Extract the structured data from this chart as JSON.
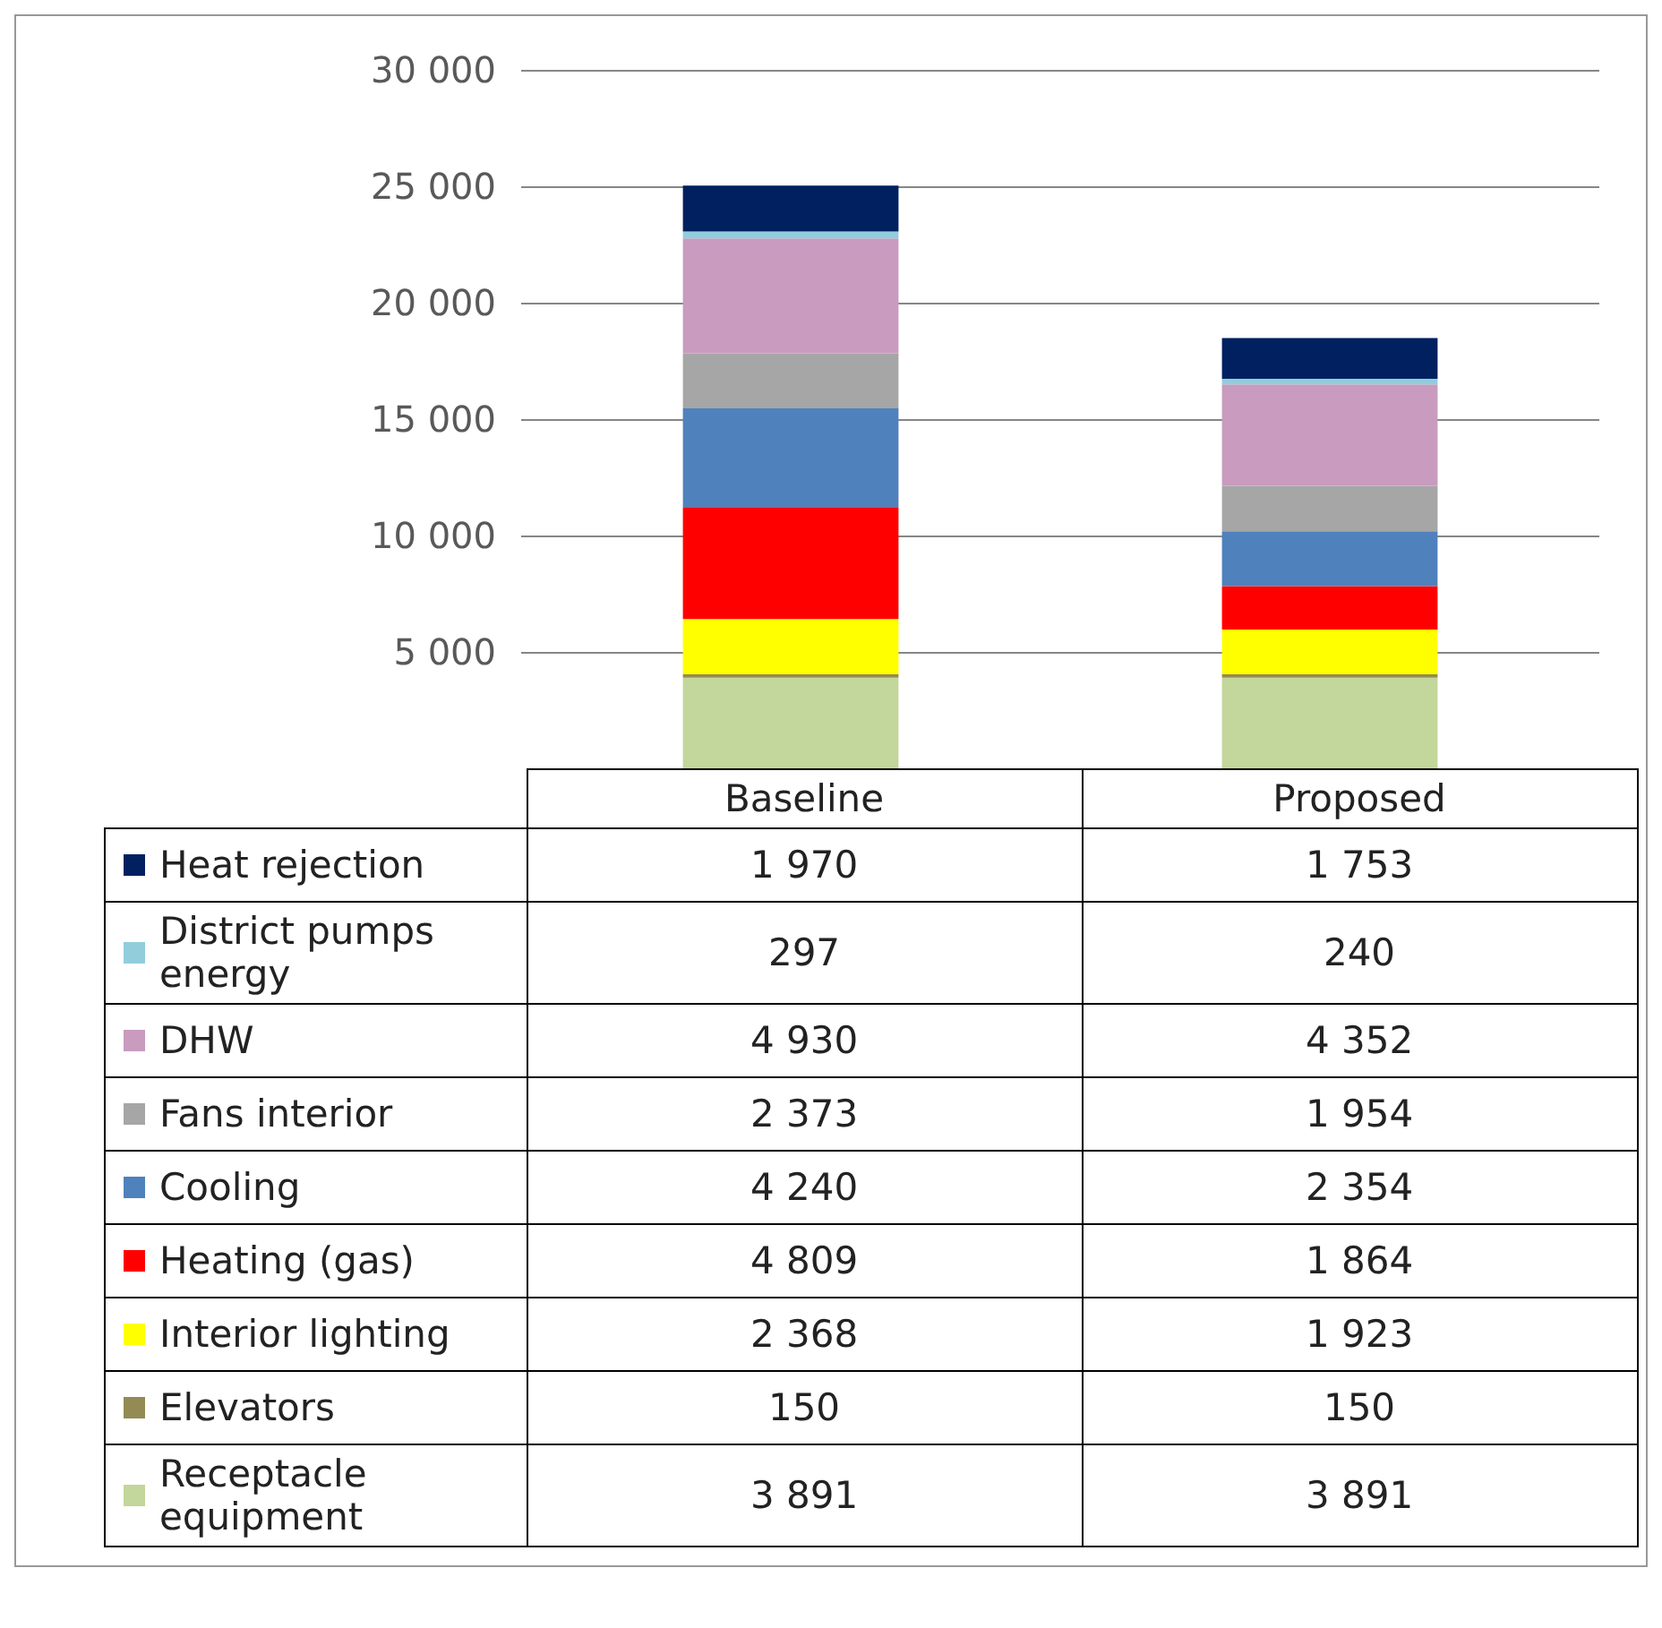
{
  "chart_data": {
    "type": "bar",
    "stacked": true,
    "categories": [
      "Baseline",
      "Proposed"
    ],
    "ylim": [
      0,
      30000
    ],
    "yticks": [
      {
        "value": 5000,
        "label": "5 000"
      },
      {
        "value": 10000,
        "label": "10 000"
      },
      {
        "value": 15000,
        "label": "15 000"
      },
      {
        "value": 20000,
        "label": "20 000"
      },
      {
        "value": 25000,
        "label": "25 000"
      },
      {
        "value": 30000,
        "label": "30 000"
      }
    ],
    "grid": "y",
    "legend": "bottom",
    "series": [
      {
        "name": "Receptacle equipment",
        "color": "#c3d69b",
        "values": [
          3891,
          3891
        ],
        "value_labels": [
          "3 891",
          "3 891"
        ]
      },
      {
        "name": "Elevators",
        "color": "#948a54",
        "values": [
          150,
          150
        ],
        "value_labels": [
          "150",
          "150"
        ]
      },
      {
        "name": "Interior lighting",
        "color": "#ffff00",
        "values": [
          2368,
          1923
        ],
        "value_labels": [
          "2 368",
          "1 923"
        ]
      },
      {
        "name": "Heating (gas)",
        "color": "#ff0000",
        "values": [
          4809,
          1864
        ],
        "value_labels": [
          "4 809",
          "1 864"
        ]
      },
      {
        "name": "Cooling",
        "color": "#4f81bd",
        "values": [
          4240,
          2354
        ],
        "value_labels": [
          "4 240",
          "2 354"
        ]
      },
      {
        "name": "Fans interior",
        "color": "#a6a6a6",
        "values": [
          2373,
          1954
        ],
        "value_labels": [
          "2 373",
          "1 954"
        ]
      },
      {
        "name": "DHW",
        "color": "#c89bbf",
        "values": [
          4930,
          4352
        ],
        "value_labels": [
          "4 930",
          "4 352"
        ]
      },
      {
        "name": "District pumps energy",
        "color": "#92cddc",
        "values": [
          297,
          240
        ],
        "value_labels": [
          "297",
          "240"
        ]
      },
      {
        "name": "Heat rejection",
        "color": "#002060",
        "values": [
          1970,
          1753
        ],
        "value_labels": [
          "1 970",
          "1 753"
        ]
      }
    ]
  }
}
